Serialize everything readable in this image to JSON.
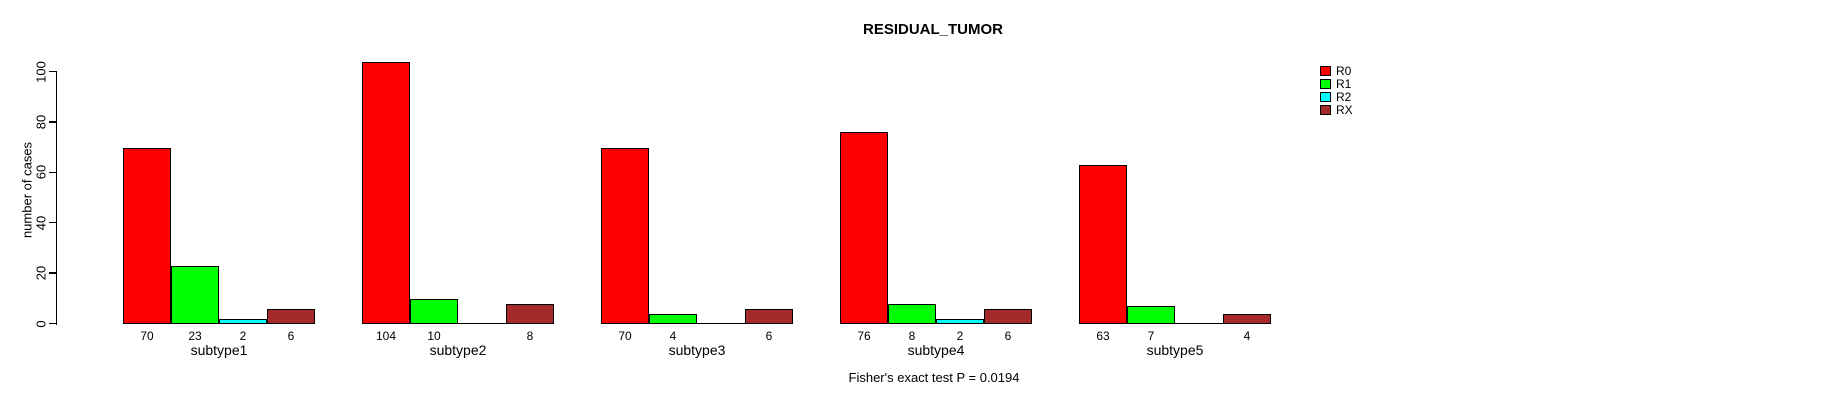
{
  "chart_data": {
    "type": "bar",
    "title": "RESIDUAL_TUMOR",
    "ylabel": "number of cases",
    "xlabel": "",
    "categories": [
      "subtype1",
      "subtype2",
      "subtype3",
      "subtype4",
      "subtype5"
    ],
    "series": [
      {
        "name": "R0",
        "color": "#ff0000",
        "values": [
          70,
          104,
          70,
          76,
          63
        ]
      },
      {
        "name": "R1",
        "color": "#00ff00",
        "values": [
          23,
          10,
          4,
          8,
          7
        ]
      },
      {
        "name": "R2",
        "color": "#00ffff",
        "values": [
          2,
          0,
          0,
          2,
          0
        ]
      },
      {
        "name": "RX",
        "color": "#a52a2a",
        "values": [
          6,
          8,
          6,
          6,
          4
        ]
      }
    ],
    "ylim": [
      0,
      100
    ],
    "yticks": [
      0,
      20,
      40,
      60,
      80,
      100
    ],
    "bar_value_labels_shown": true,
    "zero_value_bars_drawn_as_baseline_segment": true,
    "zero_value_labels_hidden": true,
    "grid": false,
    "legend_position": "right-outside",
    "legend_entries": [
      "R0",
      "R1",
      "R2",
      "RX"
    ],
    "annotation": "Fisher's exact test P = 0.0194",
    "bar_border_color": "#000000",
    "background_color": "#ffffff"
  }
}
